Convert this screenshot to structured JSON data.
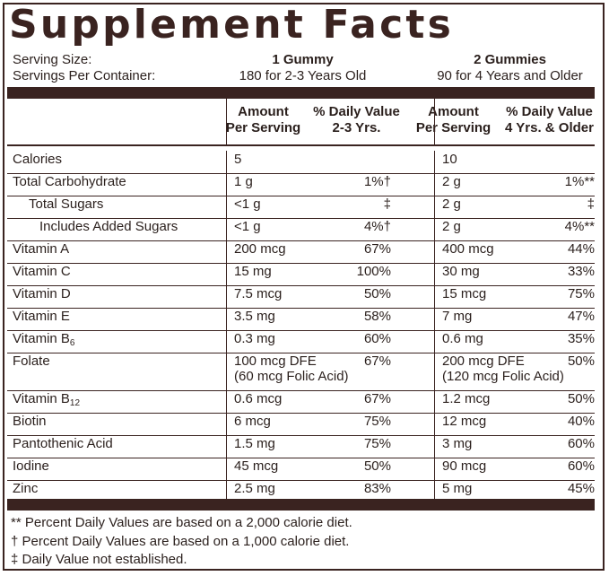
{
  "title": "Supplement Facts",
  "serving": {
    "size_label": "Serving Size:",
    "per_container_label": "Servings Per Container:",
    "col1_size": "1 Gummy",
    "col1_per_container": "180 for 2-3 Years Old",
    "col2_size": "2 Gummies",
    "col2_per_container": "90 for 4 Years and Older"
  },
  "headers": {
    "amount_1": [
      "Amount",
      "Per Serving"
    ],
    "dv_1": [
      "% Daily Value",
      "2-3 Yrs."
    ],
    "amount_2": [
      "Amount",
      "Per Serving"
    ],
    "dv_2": [
      "% Daily Value",
      "4 Yrs. & Older"
    ]
  },
  "rows": [
    {
      "name": "Calories",
      "a1": "5",
      "d1": "",
      "a2": "10",
      "d2": ""
    },
    {
      "name": "Total Carbohydrate",
      "a1": "1 g",
      "d1": "1%†",
      "a2": "2 g",
      "d2": "1%**"
    },
    {
      "name": "Total Sugars",
      "a1": "<1 g",
      "d1": "‡",
      "a2": "2 g",
      "d2": "‡"
    },
    {
      "name": "Includes Added Sugars",
      "a1": "<1 g",
      "d1": "4%†",
      "a2": "2 g",
      "d2": "4%**"
    },
    {
      "name": "Vitamin A",
      "a1": "200 mcg",
      "d1": "67%",
      "a2": "400 mcg",
      "d2": "44%"
    },
    {
      "name": "Vitamin C",
      "a1": "15 mg",
      "d1": "100%",
      "a2": "30 mg",
      "d2": "33%"
    },
    {
      "name": "Vitamin D",
      "a1": "7.5 mcg",
      "d1": "50%",
      "a2": "15 mcg",
      "d2": "75%"
    },
    {
      "name": "Vitamin E",
      "a1": "3.5 mg",
      "d1": "58%",
      "a2": "7 mg",
      "d2": "47%"
    },
    {
      "name": "Vitamin B",
      "sub": "6",
      "a1": "0.3 mg",
      "d1": "60%",
      "a2": "0.6 mg",
      "d2": "35%"
    },
    {
      "name": "Folate",
      "a1": "100 mcg DFE",
      "a1b": "(60 mcg Folic Acid)",
      "d1": "67%",
      "a2": "200 mcg DFE",
      "a2b": "(120 mcg Folic Acid)",
      "d2": "50%"
    },
    {
      "name": "Vitamin B",
      "sub": "12",
      "a1": "0.6 mcg",
      "d1": "67%",
      "a2": "1.2 mcg",
      "d2": "50%"
    },
    {
      "name": "Biotin",
      "a1": "6 mcg",
      "d1": "75%",
      "a2": "12 mcg",
      "d2": "40%"
    },
    {
      "name": "Pantothenic Acid",
      "a1": "1.5 mg",
      "d1": "75%",
      "a2": "3 mg",
      "d2": "60%"
    },
    {
      "name": "Iodine",
      "a1": "45 mcg",
      "d1": "50%",
      "a2": "90 mcg",
      "d2": "60%"
    },
    {
      "name": "Zinc",
      "a1": "2.5 mg",
      "d1": "83%",
      "a2": "5 mg",
      "d2": "45%"
    }
  ],
  "footnotes": [
    "** Percent Daily Values are based on a 2,000 calorie diet.",
    "† Percent Daily Values are based on a 1,000 calorie diet.",
    "‡ Daily Value not established."
  ],
  "colors": {
    "brand_brown": "#3a2320"
  }
}
